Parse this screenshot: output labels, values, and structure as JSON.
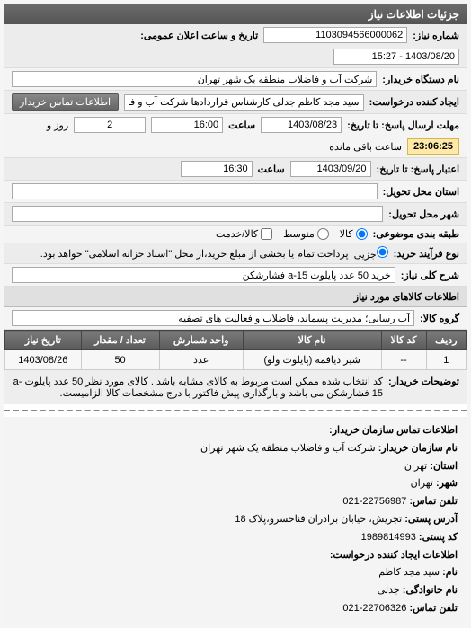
{
  "panel_title": "جزئیات اطلاعات نیاز",
  "fields": {
    "need_number_label": "شماره نیاز:",
    "need_number": "1103094566000062",
    "announce_label": "تاریخ و ساعت اعلان عمومی:",
    "announce_value": "1403/08/20 - 15:27",
    "buyer_org_label": "نام دستگاه خریدار:",
    "buyer_org": "شرکت آب و فاضلاب منطقه یک شهر تهران",
    "requester_label": "ایجاد کننده درخواست:",
    "requester": "سید مجد کاظم جدلی کارشناس قراردادها شرکت آب و فاضلاب منطقه یک شهر",
    "buyer_contact_btn": "اطلاعات تماس خریدار",
    "deadline_label": "مهلت ارسال پاسخ: تا تاریخ:",
    "deadline_date": "1403/08/23",
    "deadline_time_label": "ساعت",
    "deadline_time": "16:00",
    "remain_days": "2",
    "remain_days_label": "روز و",
    "remain_time": "23:06:25",
    "remain_label": "ساعت باقی مانده",
    "validity_label": "اعتبار پاسخ: تا تاریخ:",
    "validity_date": "1403/09/20",
    "validity_time_label": "ساعت",
    "validity_time": "16:30",
    "delivery_province_label": "استان محل تحویل:",
    "delivery_city_label": "شهر محل تحویل:",
    "category_label": "طبقه بندی موضوعی:",
    "cat_options": {
      "goods": "کالا",
      "medium": "متوسط",
      "goods_service": "کالا/خدمت"
    },
    "buy_process_label": "نوع فرآیند خرید:",
    "partial": "جزیی",
    "buy_note": "پرداخت تمام یا بخشی از مبلغ خرید،از محل \"اسناد خزانه اسلامی\" خواهد بود.",
    "need_subject_label": "شرح کلی نیاز:",
    "need_subject": "خرید 50 عدد پایلوت a-15 فشارشکن"
  },
  "items_section_title": "اطلاعات کالاهای مورد نیاز",
  "group_label": "گروه کالا:",
  "group_value": "آب رسانی؛ مدیریت پسماند، فاضلاب و فعالیت های تصفیه",
  "table": {
    "columns": [
      "ردیف",
      "کد کالا",
      "نام کالا",
      "واحد شمارش",
      "تعداد / مقدار",
      "تاریخ نیاز"
    ],
    "rows": [
      [
        "1",
        "--",
        "شیر دیافمه (پایلوت ولو)",
        "عدد",
        "50",
        "1403/08/26"
      ]
    ]
  },
  "buyer_note_label": "توضیحات خریدار:",
  "buyer_note": "کد انتخاب شده ممکن است مربوط به کالای مشابه باشد . کالای مورد نظر 50 عدد پایلوت a-15 فشارشکن می باشد و بارگذاری پیش فاکتور با درج مشخصات کالا الزامیست.",
  "contact_title": "اطلاعات تماس سازمان خریدار:",
  "contact": {
    "org_label": "نام سازمان خریدار:",
    "org": "شرکت آب و فاضلاب منطقه یک شهر تهران",
    "province_label": "استان:",
    "province": "تهران",
    "city_label": "شهر:",
    "city": "تهران",
    "phone_label": "تلفن تماس:",
    "phone": "22756987-021",
    "address_label": "آدرس پستی:",
    "address": "تجریش، خیابان برادران فناخسرو،پلاک 18",
    "postal_label": "کد پستی:",
    "postal": "1989814993",
    "creator_section": "اطلاعات ایجاد کننده درخواست:",
    "name_label": "نام:",
    "name": "سید مجد کاظم",
    "family_label": "نام خانوادگی:",
    "family": "جدلی",
    "creator_phone_label": "تلفن تماس:",
    "creator_phone": "22706326-021"
  },
  "colors": {
    "header_bg": "#606060",
    "countdown_bg": "#ffe9a8"
  }
}
